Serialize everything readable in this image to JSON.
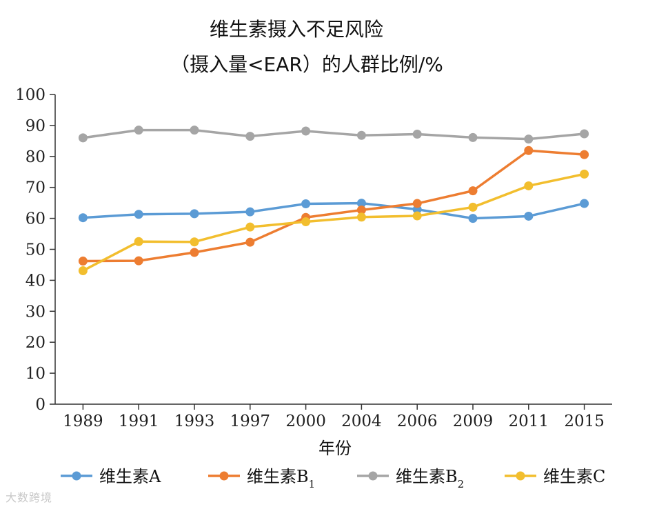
{
  "chart_data": {
    "type": "line",
    "title_line1": "维生素摄入不足风险",
    "title_line2": "（摄入量<EAR）的人群比例/%",
    "xlabel": "年份",
    "ylabel": "",
    "categories": [
      "1989",
      "1991",
      "1993",
      "1997",
      "2000",
      "2004",
      "2006",
      "2009",
      "2011",
      "2015"
    ],
    "ylim": [
      0,
      100
    ],
    "yticks": [
      0,
      10,
      20,
      30,
      40,
      50,
      60,
      70,
      80,
      90,
      100
    ],
    "legend_position": "bottom",
    "grid": false,
    "series": [
      {
        "name": "维生素A",
        "sub": "",
        "color": "#5B9BD5",
        "values": [
          60.2,
          61.3,
          61.5,
          62.1,
          64.7,
          64.9,
          62.9,
          60.0,
          60.7,
          64.8
        ]
      },
      {
        "name": "维生素B",
        "sub": "1",
        "color": "#ED7D31",
        "values": [
          46.2,
          46.3,
          49.0,
          52.3,
          60.3,
          62.7,
          64.8,
          68.9,
          81.9,
          80.6
        ]
      },
      {
        "name": "维生素B",
        "sub": "2",
        "color": "#A5A5A5",
        "values": [
          86.0,
          88.5,
          88.5,
          86.5,
          88.2,
          86.8,
          87.2,
          86.1,
          85.6,
          87.3
        ]
      },
      {
        "name": "维生素C",
        "sub": "",
        "color": "#F2BE2E",
        "values": [
          43.1,
          52.5,
          52.4,
          57.2,
          58.9,
          60.4,
          60.8,
          63.6,
          70.5,
          74.3
        ]
      }
    ]
  },
  "watermark": "大数跨境"
}
